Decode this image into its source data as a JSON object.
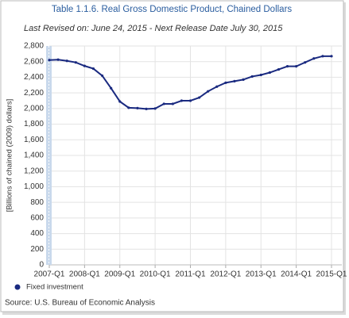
{
  "chart_data": {
    "type": "line",
    "title": "Table 1.1.6. Real Gross Domestic Product, Chained Dollars",
    "subtitle": "Last Revised on: June 24, 2015 - Next Release Date July 30, 2015",
    "y_label": "[Billions of chained (2009) dollars]",
    "source": "Source: U.S. Bureau of Economic Analysis",
    "categories": [
      "2007-Q1",
      null,
      null,
      null,
      "2008-Q1",
      null,
      null,
      null,
      "2009-Q1",
      null,
      null,
      null,
      "2010-Q1",
      null,
      null,
      null,
      "2011-Q1",
      null,
      null,
      null,
      "2012-Q1",
      null,
      null,
      null,
      "2013-Q1",
      null,
      null,
      null,
      "2014-Q1",
      null,
      null,
      null,
      "2015-Q1"
    ],
    "series": [
      {
        "name": "Fixed investment",
        "color": "#1a2a80",
        "values": [
          2620,
          2625,
          2610,
          2590,
          2545,
          2510,
          2420,
          2260,
          2090,
          2010,
          2005,
          1995,
          2000,
          2060,
          2060,
          2100,
          2100,
          2140,
          2220,
          2280,
          2330,
          2350,
          2370,
          2410,
          2430,
          2460,
          2500,
          2540,
          2540,
          2590,
          2640,
          2670,
          2670
        ]
      }
    ],
    "ylim": [
      0,
      2800
    ],
    "yticks": [
      0,
      200,
      400,
      600,
      800,
      {
        "value": 1000,
        "label": "1,000"
      },
      {
        "value": 1200,
        "label": "1,200"
      },
      {
        "value": 1400,
        "label": "1,400"
      },
      {
        "value": 1600,
        "label": "1,600"
      },
      {
        "value": 1800,
        "label": "1,800"
      },
      {
        "value": 2000,
        "label": "2,000"
      },
      {
        "value": 2200,
        "label": "2,200"
      },
      {
        "value": 2400,
        "label": "2,400"
      },
      {
        "value": 2600,
        "label": "2,600"
      },
      {
        "value": 2800,
        "label": "2,800"
      }
    ],
    "grid": true,
    "legend": "bottom-left"
  }
}
